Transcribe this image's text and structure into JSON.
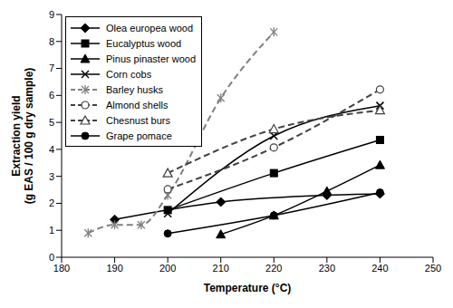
{
  "chart_data": {
    "type": "line",
    "xlabel": "Temperature (°C)",
    "ylabel": [
      "Extraction yield",
      "(g EAS / 100 g dry sample)"
    ],
    "xlim": [
      180,
      250
    ],
    "xticks": [
      180,
      190,
      200,
      210,
      220,
      230,
      240,
      250
    ],
    "ylim": [
      0,
      9
    ],
    "yticks": [
      0,
      1,
      2,
      3,
      4,
      5,
      6,
      7,
      8,
      9
    ],
    "grid": false,
    "legend": "upper left",
    "series": [
      {
        "name": "Olea europea wood",
        "color": "#000000",
        "marker": "diamond",
        "line_style": "solid",
        "x": [
          190,
          210,
          230,
          240
        ],
        "values": [
          1.4,
          2.05,
          2.3,
          2.35
        ]
      },
      {
        "name": "Eucalyptus wood",
        "color": "#000000",
        "marker": "square",
        "line_style": "solid",
        "x": [
          200,
          220,
          240
        ],
        "values": [
          1.75,
          3.12,
          4.35
        ]
      },
      {
        "name": "Pinus pinaster wood",
        "color": "#000000",
        "marker": "triangle",
        "line_style": "solid",
        "x": [
          210,
          220,
          230,
          240
        ],
        "values": [
          0.85,
          1.55,
          2.45,
          3.42
        ]
      },
      {
        "name": "Corn cobs",
        "color": "#000000",
        "marker": "x",
        "line_style": "solid",
        "x": [
          200,
          220,
          240
        ],
        "values": [
          1.62,
          4.5,
          5.62
        ]
      },
      {
        "name": "Barley husks",
        "color": "#808080",
        "marker": "asterisk",
        "line_style": "dashed",
        "x": [
          185,
          190,
          195,
          200,
          210,
          220
        ],
        "values": [
          0.9,
          1.2,
          1.2,
          2.3,
          5.9,
          8.35
        ]
      },
      {
        "name": "Almond shells",
        "color": "#404040",
        "marker": "circle_open",
        "line_style": "dashed",
        "x": [
          200,
          220,
          240
        ],
        "values": [
          2.52,
          4.07,
          6.22
        ]
      },
      {
        "name": "Chesnust burs",
        "color": "#404040",
        "marker": "triangle_open",
        "line_style": "dashed",
        "x": [
          200,
          220,
          240
        ],
        "values": [
          3.12,
          4.75,
          5.45
        ]
      },
      {
        "name": "Grape pomace",
        "color": "#000000",
        "marker": "circle",
        "line_style": "solid",
        "x": [
          200,
          220,
          240
        ],
        "values": [
          0.88,
          1.55,
          2.4
        ]
      }
    ]
  }
}
